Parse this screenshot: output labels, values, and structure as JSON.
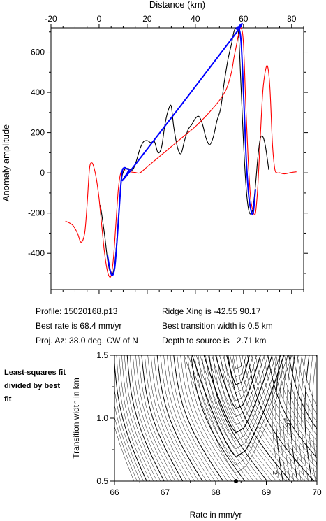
{
  "chart_data": [
    {
      "type": "line",
      "title": "",
      "xlabel": "Distance (km)",
      "ylabel": "Anomaly amplitude",
      "xlim": [
        -20,
        85
      ],
      "ylim": [
        -580,
        720
      ],
      "x_ticks": [
        -20,
        0,
        20,
        40,
        60,
        80
      ],
      "y_ticks": [
        -400,
        -200,
        0,
        200,
        400,
        600
      ],
      "x_axis_position": "top",
      "grid": false,
      "legend": "none",
      "series": [
        {
          "color": "#000000",
          "x": [
            0.5,
            1.5,
            2.5,
            3.5,
            4.5,
            5.5,
            6.5,
            7.5,
            8.5,
            9.5,
            10.5,
            11.5,
            12.5,
            14,
            15.5,
            17,
            18.5,
            20,
            21.5,
            23,
            24.5,
            26,
            27.5,
            29,
            30,
            31,
            32.5,
            34,
            35.5,
            37,
            38.5,
            40,
            41.5,
            43,
            44.5,
            46,
            47.5,
            49,
            50.5,
            52,
            53.5,
            55,
            56,
            57,
            58,
            59,
            60,
            61,
            62,
            63,
            64,
            65,
            66,
            67,
            68,
            69,
            70,
            70.5
          ],
          "y": [
            -160,
            -240,
            -330,
            -430,
            -490,
            -505,
            -450,
            -310,
            -140,
            -20,
            15,
            22,
            20,
            15,
            60,
            120,
            155,
            160,
            150,
            155,
            100,
            130,
            250,
            320,
            330,
            230,
            130,
            95,
            160,
            215,
            240,
            270,
            280,
            240,
            170,
            140,
            180,
            260,
            320,
            450,
            560,
            640,
            700,
            720,
            680,
            420,
            150,
            -60,
            -175,
            -205,
            -170,
            -60,
            80,
            170,
            180,
            140,
            60,
            15
          ]
        },
        {
          "color": "#0000ff",
          "x": [
            3.5,
            4.5,
            5.5,
            6.5,
            7.5,
            8.5,
            9.5,
            10.5,
            11.5,
            12.5,
            13,
            56,
            57,
            58,
            59,
            60,
            61,
            62,
            63,
            64,
            65
          ],
          "y": [
            -410,
            -480,
            -510,
            -470,
            -330,
            -150,
            0,
            25,
            20,
            15,
            10,
            680,
            715,
            720,
            650,
            400,
            100,
            -90,
            -180,
            -200,
            -80
          ]
        },
        {
          "color": "#ff0000",
          "x": [
            -14,
            -11,
            -9,
            -7.5,
            -6,
            -5,
            -4,
            -3,
            -2,
            -1,
            0,
            1,
            2,
            3,
            4,
            5,
            6,
            7,
            8,
            9,
            10,
            11,
            12,
            13,
            14,
            15,
            17,
            20,
            25,
            30,
            35,
            40,
            45,
            50,
            53,
            55,
            56,
            57,
            58,
            59,
            60,
            61,
            62,
            63,
            64,
            65,
            66,
            67,
            68,
            69,
            70,
            71,
            72,
            73,
            74,
            75,
            77,
            80,
            82
          ],
          "y": [
            -240,
            -260,
            -300,
            -345,
            -300,
            -160,
            20,
            50,
            20,
            -40,
            -130,
            -250,
            -370,
            -460,
            -510,
            -510,
            -420,
            -250,
            -80,
            0,
            10,
            10,
            8,
            5,
            3,
            2,
            0,
            30,
            80,
            130,
            180,
            230,
            290,
            360,
            420,
            500,
            570,
            630,
            690,
            720,
            640,
            320,
            50,
            -130,
            -190,
            -200,
            -60,
            180,
            400,
            500,
            530,
            420,
            150,
            20,
            0,
            0,
            -5,
            2,
            5
          ]
        }
      ]
    },
    {
      "type": "contour",
      "title": "",
      "xlabel": "Rate in mm/yr",
      "ylabel": "Transition width in km",
      "xlim": [
        66,
        70
      ],
      "ylim": [
        0.5,
        1.5
      ],
      "x_ticks": [
        66,
        67,
        68,
        69,
        70
      ],
      "y_ticks": [
        0.5,
        1.0,
        1.5
      ],
      "x_tick_labels": [
        "66",
        "67",
        "68",
        "69",
        "70"
      ],
      "y_tick_labels": [
        "0.5",
        "1.0",
        "1.5"
      ],
      "contour_labels": [
        "2.5",
        "2"
      ],
      "best_fit_point": {
        "rate": 68.4,
        "width": 0.5
      },
      "contour_color": "#000000"
    }
  ],
  "info": {
    "profile": "Profile: 15020168.p13",
    "best_rate": "Best rate is 68.4 mm/yr",
    "proj_az": "Proj. Az: 38.0 deg. CW of N",
    "ridge_xing": "Ridge Xing is -42.55 90.17",
    "best_transition": "Best transition width is 0.5 km",
    "depth": "Depth to source is   2.71 km"
  },
  "side_note": "Least-squares fit divided by best fit"
}
